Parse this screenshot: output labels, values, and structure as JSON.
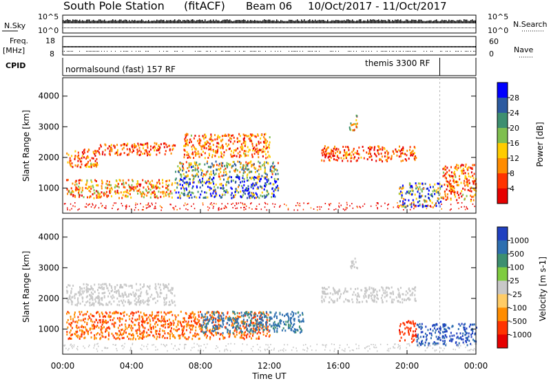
{
  "title": {
    "station": "South Pole Station",
    "mode": "(fitACF)",
    "beam": "Beam 06",
    "dates": "10/Oct/2017 - 11/Oct/2017"
  },
  "top_panels": {
    "nsky": {
      "label": "N.Sky",
      "ticks": [
        "10^5",
        "10^0"
      ]
    },
    "nsearch": {
      "label": "N.Search",
      "ticks": [
        "10^5",
        "10^0"
      ]
    },
    "freq": {
      "label_line1": "Freq.",
      "label_line2": "[MHz]",
      "ticks": [
        "18",
        "8"
      ]
    },
    "nave": {
      "label": "Nave",
      "ticks": [
        "60",
        "0"
      ]
    },
    "cpid": {
      "label": "CPID",
      "segments": [
        {
          "name": "normalsound (fast) 157 RF",
          "start_hour": 0.0,
          "end_hour": 21.9
        },
        {
          "name": "themis 3300 RF",
          "start_hour": 21.9,
          "end_hour": 24.0
        }
      ]
    }
  },
  "x_axis": {
    "label": "Time UT",
    "ticks": [
      "00:00",
      "04:00",
      "08:00",
      "12:00",
      "16:00",
      "20:00",
      "00:00"
    ],
    "range_hours": [
      0,
      24
    ]
  },
  "chart_data": [
    {
      "type": "heatmap",
      "ylabel": "Slant Range [km]",
      "y_ticks": [
        "1000",
        "2000",
        "3000",
        "4000"
      ],
      "ylim": [
        180,
        4600
      ],
      "colorbar": {
        "label": "Power [dB]",
        "ticks": [
          "4",
          "8",
          "12",
          "16",
          "20",
          "24",
          "28"
        ],
        "range": [
          0,
          30
        ],
        "colors": [
          "#0000ff",
          "#2c5aa0",
          "#3d8f70",
          "#7fbf4f",
          "#ffcc00",
          "#ff8c00",
          "#ff3300",
          "#e60000"
        ]
      },
      "scatter_regions": [
        {
          "t_start": 0.2,
          "t_end": 6.5,
          "r_start": 700,
          "r_end": 1300,
          "value": 10,
          "note": "lower band"
        },
        {
          "t_start": 6.5,
          "t_end": 12.5,
          "r_start": 700,
          "r_end": 1400,
          "value": 24,
          "note": "strong lower band"
        },
        {
          "t_start": 0.2,
          "t_end": 2.0,
          "r_start": 1700,
          "r_end": 2300,
          "value": 8,
          "note": "upper band"
        },
        {
          "t_start": 2.0,
          "t_end": 6.5,
          "r_start": 2100,
          "r_end": 2500,
          "value": 6,
          "note": "upper band"
        },
        {
          "t_start": 6.5,
          "t_end": 12.5,
          "r_start": 1400,
          "r_end": 1900,
          "value": 16,
          "note": "middle band"
        },
        {
          "t_start": 7.0,
          "t_end": 12.0,
          "r_start": 2000,
          "r_end": 2800,
          "value": 8,
          "note": "scattered"
        },
        {
          "t_start": 16.6,
          "t_end": 17.1,
          "r_start": 2900,
          "r_end": 3400,
          "value": 12,
          "note": "isolated"
        },
        {
          "t_start": 15.0,
          "t_end": 20.5,
          "r_start": 1900,
          "r_end": 2400,
          "value": 6,
          "note": "upper band"
        },
        {
          "t_start": 19.5,
          "t_end": 22.0,
          "r_start": 400,
          "r_end": 1200,
          "value": 20,
          "note": "lower band"
        },
        {
          "t_start": 22.0,
          "t_end": 24.0,
          "r_start": 600,
          "r_end": 1800,
          "value": 8,
          "note": "lower band"
        }
      ]
    },
    {
      "type": "heatmap",
      "ylabel": "Slant Range [km]",
      "y_ticks": [
        "1000",
        "2000",
        "3000",
        "4000"
      ],
      "ylim": [
        180,
        4600
      ],
      "colorbar": {
        "label": "Velocity [m s-1]",
        "ticks": [
          "1000",
          "500",
          "100",
          "25",
          "-25",
          "-100",
          "-500",
          "-1000"
        ],
        "range": [
          -1200,
          1200
        ],
        "colors": [
          "#2040c0",
          "#2e6fb0",
          "#3d8f70",
          "#7fcc40",
          "#c8c8c8",
          "#ffcc66",
          "#ff8c00",
          "#ff3300",
          "#e60000"
        ]
      },
      "scatter_regions": [
        {
          "t_start": 0.2,
          "t_end": 4.5,
          "r_start": 700,
          "r_end": 1600,
          "value": -300,
          "note": "lower band"
        },
        {
          "t_start": 4.5,
          "t_end": 12.0,
          "r_start": 700,
          "r_end": 1600,
          "value": -300,
          "note": "lower band"
        },
        {
          "t_start": 0.2,
          "t_end": 6.5,
          "r_start": 1800,
          "r_end": 2500,
          "value": 0,
          "note": "gray band"
        },
        {
          "t_start": 8.0,
          "t_end": 14.0,
          "r_start": 900,
          "r_end": 1600,
          "value": 400,
          "note": "mixed"
        },
        {
          "t_start": 16.6,
          "t_end": 17.1,
          "r_start": 3000,
          "r_end": 3400,
          "value": 0,
          "note": "isolated"
        },
        {
          "t_start": 15.0,
          "t_end": 20.5,
          "r_start": 1900,
          "r_end": 2400,
          "value": 0,
          "note": "gray band"
        },
        {
          "t_start": 20.5,
          "t_end": 24.0,
          "r_start": 500,
          "r_end": 1200,
          "value": 800,
          "note": "blue/green"
        },
        {
          "t_start": 19.5,
          "t_end": 20.5,
          "r_start": 600,
          "r_end": 1300,
          "value": -600,
          "note": "orange"
        }
      ]
    }
  ]
}
